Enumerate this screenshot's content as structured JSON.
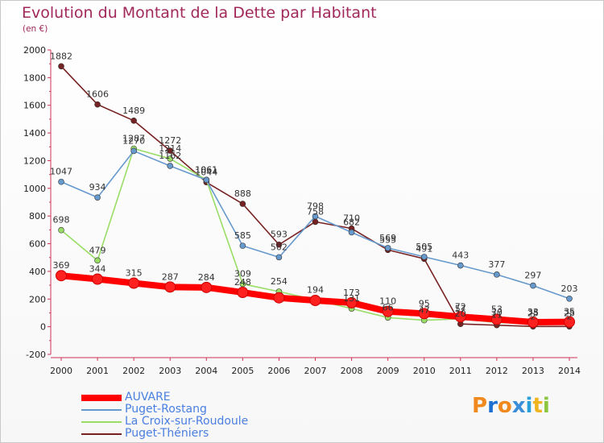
{
  "title": "Evolution du Montant de la Dette par Habitant",
  "subtitle": "(en €)",
  "logo": {
    "letters": [
      "P",
      "r",
      "o",
      "x",
      "i",
      "t",
      "i"
    ],
    "colors": [
      "#f08a1e",
      "#1e6fd2",
      "#f08a1e",
      "#3a8fd8",
      "#2aa0d8",
      "#f0b41e",
      "#8cc63e"
    ]
  },
  "chart_data": {
    "type": "line",
    "x": [
      "2000",
      "2001",
      "2002",
      "2003",
      "2004",
      "2005",
      "2006",
      "2007",
      "2008",
      "2009",
      "2010",
      "2011",
      "2012",
      "2013",
      "2014"
    ],
    "ylim": [
      -200,
      2000
    ],
    "yticks": [
      "-200",
      "0",
      "200",
      "400",
      "600",
      "800",
      "1000",
      "1200",
      "1400",
      "1600",
      "1800",
      "2000"
    ],
    "grid": false,
    "legend_position": "bottom-left",
    "series": [
      {
        "name": "AUVARE",
        "color": "#ff0000",
        "values": [
          369,
          344,
          315,
          287,
          284,
          248,
          209,
          190,
          173,
          110,
          95,
          72,
          53,
          33,
          35
        ],
        "labels": [
          "369",
          "344",
          "315",
          "287",
          "284",
          "248",
          "",
          "",
          "173",
          "110",
          "95",
          "72",
          "53",
          "33",
          "35"
        ]
      },
      {
        "name": "Puget-Rostang",
        "color": "#6699cc",
        "values": [
          1047,
          934,
          1270,
          1162,
          1061,
          585,
          502,
          798,
          682,
          569,
          505,
          443,
          377,
          297,
          203
        ],
        "labels": [
          "1047",
          "934",
          "1270",
          "1162",
          "1061",
          "585",
          "502",
          "798",
          "682",
          "569",
          "505",
          "443",
          "377",
          "297",
          "203"
        ]
      },
      {
        "name": "La Croix-sur-Roudoule",
        "color": "#99dd66",
        "values": [
          698,
          479,
          1287,
          1214,
          1061,
          309,
          254,
          194,
          131,
          66,
          47,
          57,
          30,
          25,
          25
        ],
        "labels": [
          "698",
          "479",
          "1287",
          "1214",
          "1061",
          "309",
          "254",
          "194",
          "131",
          "66",
          "47",
          "57",
          "30",
          "25",
          "25"
        ]
      },
      {
        "name": "Puget-Théniers",
        "color": "#772222",
        "values": [
          1882,
          1606,
          1489,
          1272,
          1044,
          888,
          593,
          758,
          710,
          555,
          491,
          20,
          11,
          2,
          2
        ],
        "labels": [
          "1882",
          "1606",
          "1489",
          "1272",
          "1044",
          "888",
          "593",
          "758",
          "710",
          "555",
          "491",
          "20",
          "11",
          "2",
          "2"
        ]
      }
    ]
  }
}
